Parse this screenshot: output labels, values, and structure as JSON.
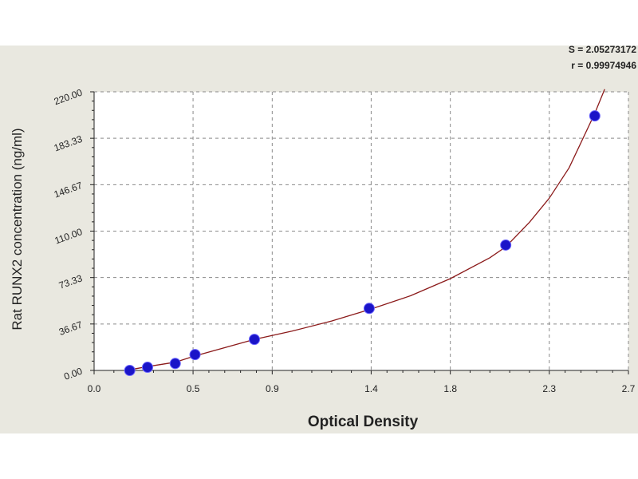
{
  "chart_data": {
    "type": "scatter",
    "title": "",
    "xlabel": "Optical Density",
    "ylabel": "Rat RUNX2 concentration (ng/ml)",
    "x_ticks": [
      "0.0",
      "0.5",
      "0.9",
      "1.4",
      "1.8",
      "2.3",
      "2.7"
    ],
    "y_ticks": [
      "0.00",
      "36.67",
      "73.33",
      "110.00",
      "146.67",
      "183.33",
      "220.00"
    ],
    "xlim": [
      0,
      2.7
    ],
    "ylim": [
      0,
      220
    ],
    "grid": true,
    "series": [
      {
        "type": "scatter",
        "x": [
          0.18,
          0.27,
          0.41,
          0.51,
          0.81,
          1.39,
          2.08,
          2.53
        ],
        "y": [
          0.0,
          2.5,
          5.5,
          12.5,
          24.5,
          49.0,
          99.0,
          201.0
        ],
        "color": "#1a14c8"
      },
      {
        "type": "line",
        "x": [
          0.18,
          0.27,
          0.41,
          0.51,
          0.81,
          1.0,
          1.2,
          1.39,
          1.6,
          1.8,
          2.0,
          2.08,
          2.2,
          2.3,
          2.4,
          2.53,
          2.58
        ],
        "y": [
          0.5,
          3.0,
          6.5,
          11.5,
          24.5,
          31.0,
          39.0,
          48.0,
          59.0,
          72.5,
          89.0,
          97.5,
          117.0,
          136.0,
          160.0,
          203.0,
          222.0
        ],
        "color": "#8b1a1a"
      }
    ],
    "annotations": [
      "S = 2.05273172",
      "r = 0.99974946"
    ]
  },
  "colors": {
    "panel_background": "#e9e8e0",
    "plot_background": "#ffffff",
    "grid": "#8a8a8a",
    "point": "#1a14c8",
    "curve": "#8b1a1a"
  }
}
